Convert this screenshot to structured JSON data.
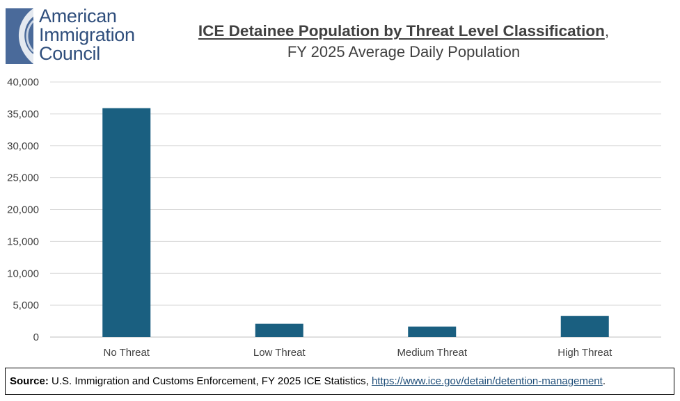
{
  "logo": {
    "line1": "American",
    "line2": "Immigration",
    "line3": "Council"
  },
  "title": {
    "main": "ICE Detainee Population by Threat Level Classification",
    "trailing": ",",
    "subtitle": "FY 2025 Average Daily Population"
  },
  "chart_data": {
    "type": "bar",
    "title": "ICE Detainee Population by Threat Level Classification, FY 2025 Average Daily Population",
    "categories": [
      "No Threat",
      "Low Threat",
      "Medium Threat",
      "High Threat"
    ],
    "values": [
      35900,
      2100,
      1650,
      3300
    ],
    "ylim": [
      0,
      40000
    ],
    "yticks": [
      0,
      5000,
      10000,
      15000,
      20000,
      25000,
      30000,
      35000,
      40000
    ],
    "ytick_labels": [
      "0",
      "5,000",
      "10,000",
      "15,000",
      "20,000",
      "25,000",
      "30,000",
      "35,000",
      "40,000"
    ],
    "xlabel": "",
    "ylabel": "",
    "grid": true,
    "bar_color": "#1a5f80",
    "grid_color": "#d9d9d9"
  },
  "source": {
    "label": "Source:",
    "text": " U.S. Immigration and Customs Enforcement, FY 2025 ICE Statistics, ",
    "link": "https://www.ice.gov/detain/detention-management",
    "end": "."
  }
}
